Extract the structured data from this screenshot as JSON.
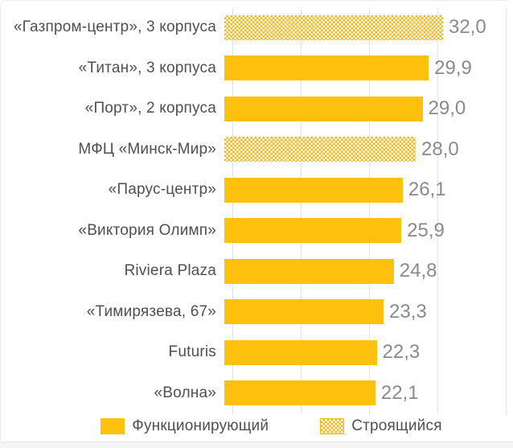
{
  "colors": {
    "bar_solid": "#FEC10D",
    "bar_pattern": "#F2B616",
    "category_label": "#4F4F4F",
    "value_label": "#8A8A8A",
    "gridline": "#E3E3E3",
    "bottom_strip": "#F6F5F5"
  },
  "chart_data": {
    "type": "bar",
    "orientation": "horizontal",
    "title": "",
    "xlabel": "",
    "ylabel": "",
    "xlim": [
      0,
      40
    ],
    "gridline_values": [
      0,
      10,
      20,
      30,
      40
    ],
    "grid": true,
    "legend_position": "bottom",
    "legend": [
      {
        "label": "Функционирующий",
        "style": "solid"
      },
      {
        "label": "Строящийся",
        "style": "dotted"
      }
    ],
    "bars": [
      {
        "label": "«Газпром-центр», 3 корпуса",
        "value": 32.0,
        "display": "32,0",
        "series": "Строящийся"
      },
      {
        "label": "«Титан», 3 корпуса",
        "value": 29.9,
        "display": "29,9",
        "series": "Функционирующий"
      },
      {
        "label": "«Порт», 2 корпуса",
        "value": 29.0,
        "display": "29,0",
        "series": "Функционирующий"
      },
      {
        "label": "МФЦ «Минск-Мир»",
        "value": 28.0,
        "display": "28,0",
        "series": "Строящийся"
      },
      {
        "label": "«Парус-центр»",
        "value": 26.1,
        "display": "26,1",
        "series": "Функционирующий"
      },
      {
        "label": "«Виктория Олимп»",
        "value": 25.9,
        "display": "25,9",
        "series": "Функционирующий"
      },
      {
        "label": "Riviera Plaza",
        "value": 24.8,
        "display": "24,8",
        "series": "Функционирующий"
      },
      {
        "label": "«Тимирязева, 67»",
        "value": 23.3,
        "display": "23,3",
        "series": "Функционирующий"
      },
      {
        "label": "Futuris",
        "value": 22.3,
        "display": "22,3",
        "series": "Функционирующий"
      },
      {
        "label": "«Волна»",
        "value": 22.1,
        "display": "22,1",
        "series": "Функционирующий"
      }
    ]
  }
}
